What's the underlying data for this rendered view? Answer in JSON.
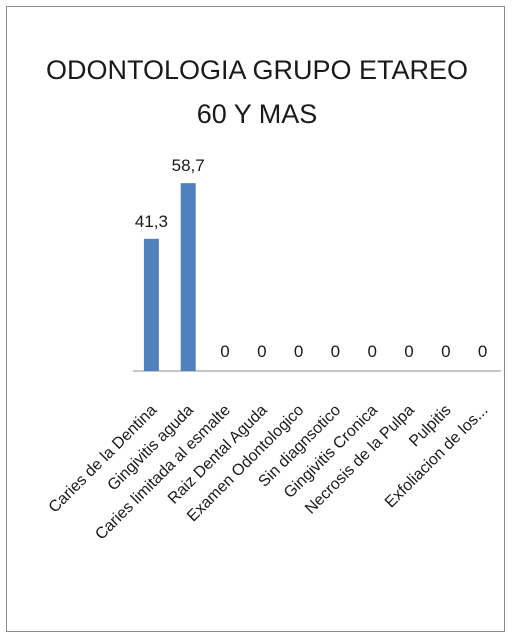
{
  "chart_data": {
    "type": "bar",
    "title": "ODONTOLOGIA GRUPO ETAREO",
    "subtitle": "60 Y MAS",
    "categories": [
      "Caries de la Dentina",
      "Gingivitis aguda",
      "Caries limitada al esmalte",
      "Raiz Dental Aguda",
      "Examen Odontologico",
      "Sin diagnsotico",
      "Gingivitis Cronica",
      "Necrosis de la Pulpa",
      "Pulpitis",
      "Exfoliacion de los..."
    ],
    "values": [
      41.3,
      58.7,
      0,
      0,
      0,
      0,
      0,
      0,
      0,
      0
    ],
    "data_labels": [
      "41,3",
      "58,7",
      "0",
      "0",
      "0",
      "0",
      "0",
      "0",
      "0",
      "0"
    ],
    "ylim": [
      0,
      60
    ],
    "grid": false,
    "legend": "none",
    "bar_color": "#4f81bd",
    "axis_color": "#8c8c8c",
    "frame_color": "#8c8c8c"
  }
}
